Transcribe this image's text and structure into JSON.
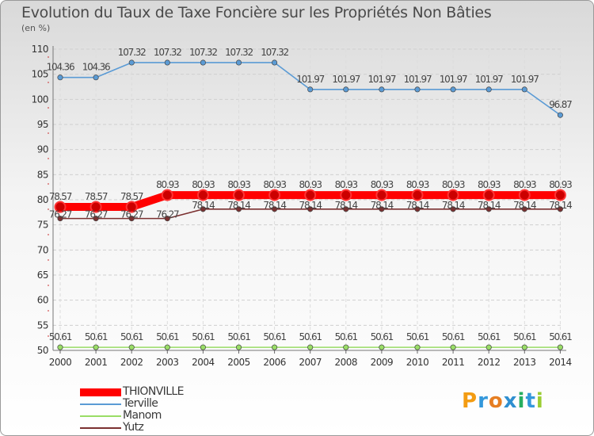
{
  "title": "Evolution du Taux de Taxe Foncière sur les Propriétés Non Bâties",
  "unit_label": "(en %)",
  "logo": {
    "letters": [
      "P",
      "r",
      "o",
      "x",
      "i",
      "t",
      "i"
    ],
    "colors": [
      "#f39c12",
      "#3498db",
      "#e67e22",
      "#2f8fd0",
      "#27ae60",
      "#3498db",
      "#9acd32"
    ]
  },
  "chart_data": {
    "type": "line",
    "title": "Evolution du Taux de Taxe Foncière sur les Propriétés Non Bâties",
    "ylabel": "(en %)",
    "xlabel": "",
    "x": [
      "2000",
      "2001",
      "2002",
      "2003",
      "2004",
      "2005",
      "2006",
      "2007",
      "2008",
      "2009",
      "2010",
      "2011",
      "2012",
      "2013",
      "2014"
    ],
    "ylim": [
      50,
      110
    ],
    "yticks": [
      "50",
      "55",
      "60",
      "65",
      "70",
      "75",
      "80",
      "85",
      "90",
      "95",
      "100",
      "105",
      "110"
    ],
    "grid": true,
    "series": [
      {
        "name": "THIONVILLE",
        "color": "#ff0000",
        "emphasis": true,
        "values": [
          78.57,
          78.57,
          78.57,
          80.93,
          80.93,
          80.93,
          80.93,
          80.93,
          80.93,
          80.93,
          80.93,
          80.93,
          80.93,
          80.93,
          80.93
        ],
        "labels": [
          "78.57",
          "78.57",
          "78.57",
          "80.93",
          "80.93",
          "80.93",
          "80.93",
          "80.93",
          "80.93",
          "80.93",
          "80.93",
          "80.93",
          "80.93",
          "80.93",
          "80.93"
        ]
      },
      {
        "name": "Terville",
        "color": "#5b9bd5",
        "emphasis": false,
        "values": [
          104.36,
          104.36,
          107.32,
          107.32,
          107.32,
          107.32,
          107.32,
          101.97,
          101.97,
          101.97,
          101.97,
          101.97,
          101.97,
          101.97,
          96.87
        ],
        "labels": [
          "104.36",
          "104.36",
          "107.32",
          "107.32",
          "107.32",
          "107.32",
          "107.32",
          "101.97",
          "101.97",
          "101.97",
          "101.97",
          "101.97",
          "101.97",
          "101.97",
          "96.87"
        ]
      },
      {
        "name": "Manom",
        "color": "#99dd66",
        "emphasis": false,
        "values": [
          50.61,
          50.61,
          50.61,
          50.61,
          50.61,
          50.61,
          50.61,
          50.61,
          50.61,
          50.61,
          50.61,
          50.61,
          50.61,
          50.61,
          50.61
        ],
        "labels": [
          "50.61",
          "50.61",
          "50.61",
          "50.61",
          "50.61",
          "50.61",
          "50.61",
          "50.61",
          "50.61",
          "50.61",
          "50.61",
          "50.61",
          "50.61",
          "50.61",
          "50.61"
        ]
      },
      {
        "name": "Yutz",
        "color": "#7b3030",
        "emphasis": false,
        "values": [
          76.27,
          76.27,
          76.27,
          76.27,
          78.14,
          78.14,
          78.14,
          78.14,
          78.14,
          78.14,
          78.14,
          78.14,
          78.14,
          78.14,
          78.14
        ],
        "labels": [
          "76.27",
          "76.27",
          "76.27",
          "76.27",
          "78.14",
          "78.14",
          "78.14",
          "78.14",
          "78.14",
          "78.14",
          "78.14",
          "78.14",
          "78.14",
          "78.14",
          "78.14"
        ]
      }
    ]
  }
}
